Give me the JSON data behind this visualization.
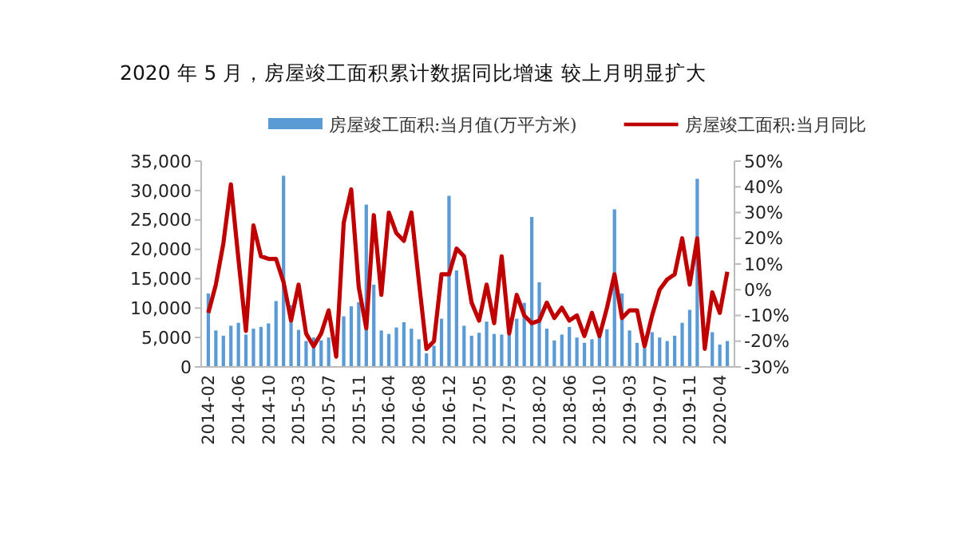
{
  "chart_data": {
    "type": "bar",
    "title": "2020 年 5 月，房屋竣工面积累计数据同比增速 较上月明显扩大",
    "categories": [
      "2014-02",
      null,
      null,
      null,
      "2014-06",
      null,
      null,
      null,
      "2014-10",
      null,
      null,
      null,
      "2015-03",
      null,
      null,
      null,
      "2015-07",
      null,
      null,
      null,
      "2015-11",
      null,
      null,
      null,
      "2016-04",
      null,
      null,
      null,
      "2016-08",
      null,
      null,
      null,
      "2016-12",
      null,
      null,
      null,
      "2017-05",
      null,
      null,
      null,
      "2017-09",
      null,
      null,
      null,
      "2018-02",
      null,
      null,
      null,
      "2018-06",
      null,
      null,
      null,
      "2018-10",
      null,
      null,
      null,
      "2019-03",
      null,
      null,
      null,
      "2019-07",
      null,
      null,
      null,
      "2019-11",
      null,
      null,
      null,
      "2020-04",
      null
    ],
    "series": [
      {
        "name": "房屋竣工面积:当月值(万平方米)",
        "color": "#5b9bd5",
        "values": [
          12500,
          6200,
          5300,
          7000,
          7500,
          5500,
          6500,
          6800,
          7400,
          11200,
          32500,
          10500,
          6300,
          4400,
          5000,
          4500,
          5000,
          null,
          8600,
          10300,
          11000,
          27600,
          14000,
          6200,
          5600,
          6700,
          7600,
          6500,
          4700,
          2300,
          3600,
          8200,
          29100,
          16400,
          7000,
          5300,
          5800,
          7700,
          5600,
          5500,
          5900,
          8200,
          10900,
          25500,
          14400,
          6500,
          4500,
          5500,
          6800,
          5000,
          4100,
          4700,
          5300,
          6400,
          26800,
          12500,
          6200,
          4100,
          3200,
          5900,
          5000,
          4400,
          5300,
          7500,
          9700,
          32000,
          null,
          5900,
          3800,
          4400
        ]
      },
      {
        "name": "房屋竣工面积:当月同比",
        "type": "line",
        "axis": "y2",
        "color": "#c00000",
        "values": [
          -9,
          2,
          18,
          41,
          12,
          -16,
          25,
          13,
          12,
          12,
          3,
          -12,
          2,
          -17,
          -22,
          -17,
          -8,
          -26,
          26,
          39,
          1,
          -15,
          29,
          -2,
          30,
          22,
          19,
          30,
          3,
          -23,
          -20,
          6,
          6,
          16,
          13,
          -5,
          -12,
          2,
          -13,
          13,
          -17,
          -2,
          -10,
          -13,
          -12,
          -5,
          -11,
          -7,
          -12,
          -10,
          -18,
          -9,
          -18,
          -7,
          6,
          -11,
          -8,
          -8,
          -22,
          -10,
          0,
          4,
          6,
          20,
          2,
          20,
          -23,
          -1,
          -9,
          7
        ]
      }
    ],
    "ylim": [
      0,
      35000
    ],
    "yticks": [
      0,
      {
        "value": 5000,
        "label": "5,000"
      },
      {
        "value": 10000,
        "label": "10,000"
      },
      {
        "value": 15000,
        "label": "15,000"
      },
      {
        "value": 20000,
        "label": "20,000"
      },
      {
        "value": 25000,
        "label": "25,000"
      },
      {
        "value": 30000,
        "label": "30,000"
      },
      {
        "value": 35000,
        "label": "35,000"
      }
    ],
    "y2lim": [
      -30,
      50
    ],
    "y2ticks": [
      {
        "value": -30,
        "label": "-30%"
      },
      {
        "value": -20,
        "label": "-20%"
      },
      {
        "value": -10,
        "label": "-10%"
      },
      {
        "value": 0,
        "label": "0%"
      },
      {
        "value": 10,
        "label": "10%"
      },
      {
        "value": 20,
        "label": "20%"
      },
      {
        "value": 30,
        "label": "30%"
      },
      {
        "value": 40,
        "label": "40%"
      },
      {
        "value": 50,
        "label": "50%"
      }
    ],
    "legend": "top",
    "grid": false,
    "line_style": "solid"
  }
}
